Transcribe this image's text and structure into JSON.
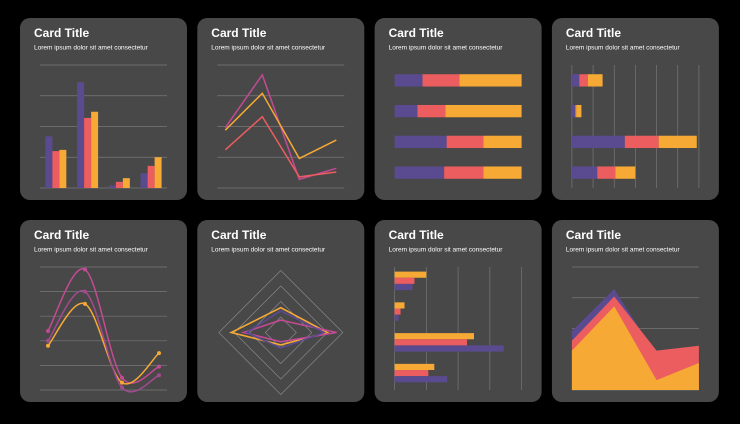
{
  "chart_data": [
    {
      "type": "bar",
      "title": "Card Title",
      "subtitle": "Lorem ipsum dolor sit amet consectetur",
      "ylim": [
        0,
        100
      ],
      "yticks": [
        0,
        25,
        50,
        75,
        100
      ],
      "grid": true,
      "series": [
        {
          "color": "#5a4b91",
          "values": [
            42,
            86,
            2,
            12
          ]
        },
        {
          "color": "#ec5d5f",
          "values": [
            30,
            57,
            5,
            18
          ]
        },
        {
          "color": "#f6a935",
          "values": [
            31,
            62,
            8,
            25
          ]
        }
      ]
    },
    {
      "type": "line",
      "title": "Card Title",
      "subtitle": "Lorem ipsum dolor sit amet consectetur",
      "ylim": [
        0,
        100
      ],
      "yticks": [
        0,
        25,
        50,
        75,
        100
      ],
      "grid": true,
      "series": [
        {
          "color": "#c34a94",
          "values": [
            49,
            92,
            7,
            16
          ]
        },
        {
          "color": "#f6a935",
          "values": [
            47,
            77,
            24,
            39
          ]
        },
        {
          "color": "#ec5d5f",
          "values": [
            31,
            58,
            9,
            13
          ]
        }
      ]
    },
    {
      "type": "barh",
      "stacked": true,
      "title": "Card Title",
      "subtitle": "Lorem ipsum dolor sit amet consectetur",
      "xlim": [
        0,
        100
      ],
      "grid": false,
      "series": [
        {
          "color": "#5a4b91",
          "values": [
            22,
            18,
            41,
            39
          ]
        },
        {
          "color": "#ec5d5f",
          "values": [
            29,
            22,
            29,
            31
          ]
        },
        {
          "color": "#f6a935",
          "values": [
            49,
            60,
            30,
            30
          ]
        }
      ]
    },
    {
      "type": "barh",
      "stacked": true,
      "title": "Card Title",
      "subtitle": "Lorem ipsum dolor sit amet consectetur",
      "xlim": [
        0,
        120
      ],
      "xticks": [
        0,
        20,
        40,
        60,
        80,
        100,
        120
      ],
      "grid": true,
      "series": [
        {
          "color": "#5a4b91",
          "values": [
            7,
            3,
            50,
            24
          ]
        },
        {
          "color": "#ec5d5f",
          "values": [
            8,
            1,
            32,
            17
          ]
        },
        {
          "color": "#f6a935",
          "values": [
            14,
            5,
            36,
            19
          ]
        }
      ]
    },
    {
      "type": "line",
      "smooth": true,
      "markers": true,
      "title": "Card Title",
      "subtitle": "Lorem ipsum dolor sit amet consectetur",
      "ylim": [
        0,
        100
      ],
      "yticks": [
        0,
        20,
        40,
        60,
        80,
        100
      ],
      "grid": true,
      "series": [
        {
          "color": "#c34a94",
          "values": [
            48,
            98,
            10,
            19
          ]
        },
        {
          "color": "#f6a935",
          "values": [
            36,
            70,
            6,
            30
          ]
        },
        {
          "color": "#a24a8f",
          "values": [
            40,
            80,
            2,
            12
          ]
        }
      ]
    },
    {
      "type": "radar",
      "title": "Card Title",
      "subtitle": "Lorem ipsum dolor sit amet consectetur",
      "rlim": [
        0,
        100
      ],
      "rticks": [
        25,
        50,
        75,
        100
      ],
      "grid": true,
      "series": [
        {
          "color": "#f6a935",
          "values": [
            40,
            75,
            20,
            80
          ]
        },
        {
          "color": "#c34a94",
          "values": [
            20,
            90,
            15,
            60
          ]
        },
        {
          "color": "#5a4b91",
          "values": [
            35,
            70,
            25,
            55
          ]
        }
      ]
    },
    {
      "type": "barh",
      "stacked": false,
      "title": "Card Title",
      "subtitle": "Lorem ipsum dolor sit amet consectetur",
      "xlim": [
        0,
        128
      ],
      "xticks": [
        0,
        32,
        64,
        96,
        128
      ],
      "grid": true,
      "series": [
        {
          "color": "#f6a935",
          "values": [
            32,
            10,
            80,
            40
          ]
        },
        {
          "color": "#ec5d5f",
          "values": [
            20,
            6,
            73,
            34
          ]
        },
        {
          "color": "#5a4b91",
          "values": [
            18,
            4,
            110,
            53
          ]
        }
      ]
    },
    {
      "type": "area",
      "title": "Card Title",
      "subtitle": "Lorem ipsum dolor sit amet consectetur",
      "ylim": [
        0,
        100
      ],
      "yticks": [
        0,
        25,
        50,
        75,
        100
      ],
      "grid": true,
      "series": [
        {
          "color": "#5a4b91",
          "values": [
            48,
            82,
            28,
            30
          ]
        },
        {
          "color": "#ec5d5f",
          "values": [
            40,
            76,
            32,
            36
          ]
        },
        {
          "color": "#f6a935",
          "values": [
            32,
            68,
            8,
            22
          ]
        }
      ]
    }
  ]
}
